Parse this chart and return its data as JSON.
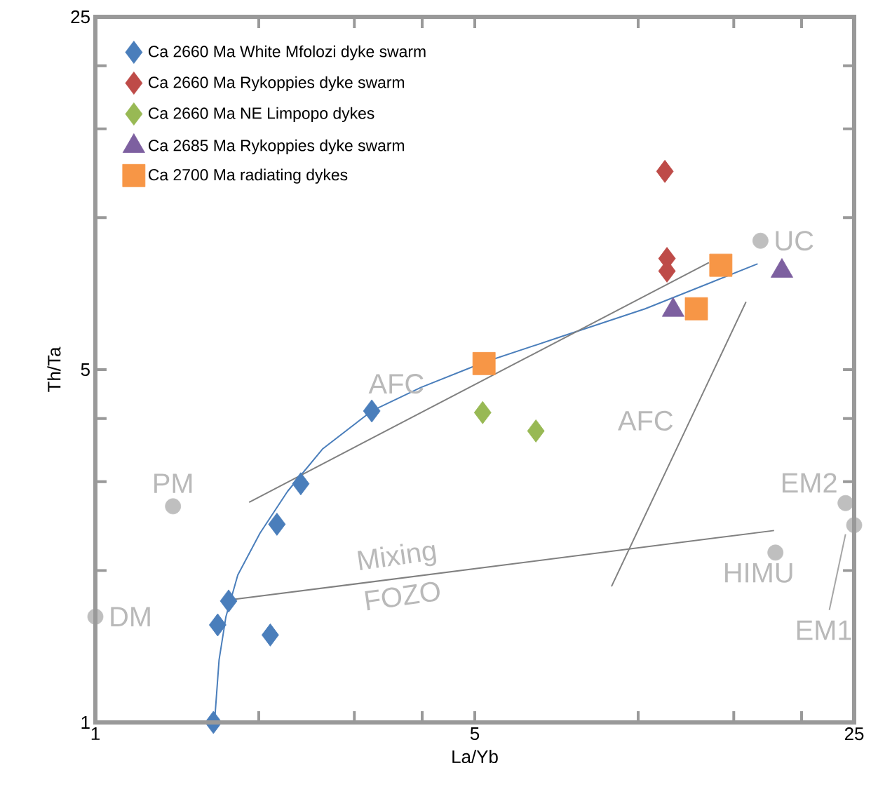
{
  "chart_data": {
    "type": "scatter",
    "xlabel": "La/Yb",
    "ylabel": "Th/Ta",
    "log": "xy",
    "grid": false,
    "legend": "top left",
    "xlim": [
      1,
      25
    ],
    "ylim": [
      1,
      25
    ],
    "xticks": [
      1,
      {
        "value": 2,
        "label": null
      },
      {
        "value": 3,
        "label": null
      },
      {
        "value": 4,
        "label": null
      },
      5,
      {
        "value": 10,
        "label": null
      },
      {
        "value": 15,
        "label": null
      },
      {
        "value": 20,
        "label": null
      },
      25
    ],
    "yticks": [
      1,
      {
        "value": 2,
        "label": null
      },
      {
        "value": 3,
        "label": null
      },
      {
        "value": 4,
        "label": null
      },
      5,
      {
        "value": 10,
        "label": null
      },
      {
        "value": 15,
        "label": null
      },
      {
        "value": 20,
        "label": null
      },
      25
    ],
    "series": [
      {
        "type": "line",
        "color": "#4a7ebb",
        "x": [
          1.66,
          1.69,
          1.74,
          1.83,
          2.01,
          2.26,
          2.62,
          3.23,
          3.98,
          5.2,
          7.21,
          10.3,
          16.6
        ],
        "values": [
          1.02,
          1.33,
          1.62,
          1.96,
          2.37,
          2.87,
          3.48,
          4.14,
          4.61,
          5.17,
          5.81,
          6.6,
          8.1
        ]
      },
      {
        "type": "line",
        "color": "#808080",
        "x": [
          1.92,
          13.5
        ],
        "values": [
          2.73,
          8.15
        ]
      },
      {
        "type": "line",
        "color": "#808080",
        "x": [
          1.78,
          17.8
        ],
        "values": [
          1.75,
          2.4
        ]
      },
      {
        "type": "line",
        "color": "#808080",
        "x": [
          8.93,
          15.8
        ],
        "values": [
          1.86,
          6.81
        ]
      },
      {
        "type": "line",
        "color": "#a6a6a6",
        "x": [
          22.5,
          24.1
        ],
        "values": [
          1.67,
          2.36
        ]
      },
      {
        "marker": "circle",
        "color": "#bfbfbf",
        "x": [
          16.8,
          1.39,
          1,
          17.9,
          24.1,
          25
        ],
        "values": [
          9.0,
          2.68,
          1.62,
          2.17,
          2.72,
          2.46
        ]
      },
      {
        "marker": "diamond",
        "name": "Ca 2660 Ma White Mfolozi dyke swarm",
        "color": "#4a7ebb",
        "x": [
          1.65,
          1.68,
          1.76,
          2.1,
          2.16,
          2.39,
          3.23
        ],
        "values": [
          1.0,
          1.56,
          1.74,
          1.49,
          2.47,
          2.97,
          4.14
        ]
      },
      {
        "marker": "diamond",
        "name": "Ca 2660 Ma Rykoppies dyke swarm",
        "color": "#be4b48",
        "x": [
          11.2,
          11.3,
          11.3
        ],
        "values": [
          12.35,
          8.3,
          7.84
        ]
      },
      {
        "marker": "diamond",
        "name": "Ca 2660 Ma NE Limpopo dykes",
        "color": "#98b954",
        "x": [
          5.17,
          6.48
        ],
        "values": [
          4.11,
          3.78
        ]
      },
      {
        "marker": "triangle",
        "name": "Ca 2685 Ma Rykoppies dyke swarm",
        "color": "#7d60a0",
        "x": [
          11.6,
          18.4
        ],
        "values": [
          6.56,
          7.84
        ]
      },
      {
        "marker": "square",
        "name": "Ca 2700 Ma radiating dykes",
        "color": "#f79646",
        "x": [
          5.2,
          12.8,
          14.2
        ],
        "values": [
          5.14,
          6.6,
          8.05
        ]
      }
    ],
    "annotations": [
      {
        "text": "UC",
        "x": 16.8,
        "y": 9.0
      },
      {
        "text": "PM",
        "x": 1.39,
        "y": 2.68
      },
      {
        "text": "DM",
        "x": 1,
        "y": 1.62
      },
      {
        "text": "HIMU",
        "x": 17.9,
        "y": 2.17
      },
      {
        "text": "EM2",
        "x": 24.1,
        "y": 2.72
      },
      {
        "text": "EM1",
        "x": 22.5,
        "y": 1.67
      },
      {
        "text": "AFC",
        "x": 3.98,
        "y": 4.61
      },
      {
        "text": "AFC",
        "x": 12.45,
        "y": 3.96
      },
      {
        "text": "Mixing",
        "x": 3.64,
        "y": 1.93
      },
      {
        "text": "FOZO",
        "x": 3.64,
        "y": 1.93
      }
    ]
  }
}
